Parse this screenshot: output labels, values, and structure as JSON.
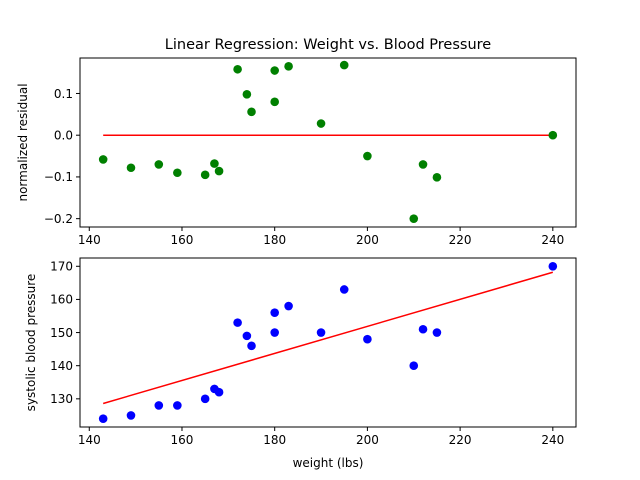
{
  "figure": {
    "title": "Linear Regression: Weight vs. Blood Pressure"
  },
  "chart_data": [
    {
      "type": "scatter",
      "title": "Linear Regression: Weight vs. Blood Pressure",
      "xlabel": "",
      "ylabel": "normalized residual",
      "xlim": [
        138,
        245
      ],
      "ylim": [
        -0.22,
        0.185
      ],
      "xticks": [
        140,
        160,
        180,
        200,
        220,
        240
      ],
      "xtick_labels": [
        "140",
        "160",
        "180",
        "200",
        "220",
        "240"
      ],
      "yticks": [
        0.1,
        0.0,
        -0.1,
        -0.2
      ],
      "ytick_labels": [
        "0.1",
        "0.0",
        "−0.1",
        "−0.2"
      ],
      "grid": false,
      "series": [
        {
          "kind": "scatter",
          "color": "#008000",
          "x": [
            143,
            149,
            155,
            159,
            165,
            167,
            168,
            172,
            174,
            175,
            180,
            180,
            183,
            190,
            195,
            200,
            210,
            212,
            215,
            240
          ],
          "y": [
            -0.058,
            -0.078,
            -0.07,
            -0.09,
            -0.095,
            -0.068,
            -0.086,
            0.158,
            0.098,
            0.056,
            0.155,
            0.08,
            0.165,
            0.028,
            0.168,
            -0.05,
            -0.2,
            -0.07,
            -0.101,
            0.0
          ]
        },
        {
          "kind": "line",
          "color": "#ff0000",
          "x": [
            143,
            240
          ],
          "y": [
            0.0,
            0.0
          ]
        }
      ]
    },
    {
      "type": "scatter",
      "title": "",
      "xlabel": "weight (lbs)",
      "ylabel": "systolic blood pressure",
      "xlim": [
        138,
        245
      ],
      "ylim": [
        121.5,
        172.5
      ],
      "xticks": [
        140,
        160,
        180,
        200,
        220,
        240
      ],
      "xtick_labels": [
        "140",
        "160",
        "180",
        "200",
        "220",
        "240"
      ],
      "yticks": [
        130,
        140,
        150,
        160,
        170
      ],
      "ytick_labels": [
        "130",
        "140",
        "150",
        "160",
        "170"
      ],
      "grid": false,
      "series": [
        {
          "kind": "scatter",
          "color": "#0000ff",
          "x": [
            143,
            149,
            155,
            159,
            165,
            167,
            168,
            172,
            174,
            175,
            180,
            180,
            183,
            190,
            195,
            200,
            210,
            212,
            215,
            240
          ],
          "y": [
            124,
            125,
            128,
            128,
            130,
            133,
            132,
            153,
            149,
            146,
            156,
            150,
            158,
            150,
            163,
            148,
            140,
            151,
            150,
            170
          ]
        },
        {
          "kind": "line",
          "color": "#ff0000",
          "x": [
            143,
            240
          ],
          "y": [
            128.6,
            168.2
          ]
        }
      ]
    }
  ]
}
